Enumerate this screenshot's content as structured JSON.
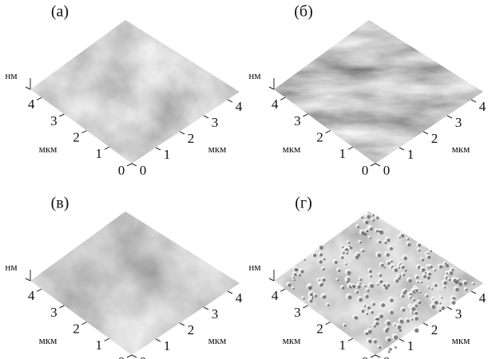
{
  "panels": [
    {
      "label": "(а)",
      "z_unit": "нм",
      "left_axis": {
        "ticks": [
          0,
          1,
          2,
          3,
          4
        ],
        "unit": "мкм"
      },
      "right_axis": {
        "ticks": [
          0,
          1,
          2,
          3,
          4
        ],
        "unit": "мкм"
      }
    },
    {
      "label": "(б)",
      "z_unit": "нм",
      "left_axis": {
        "ticks": [
          0,
          1,
          2,
          3,
          4
        ],
        "unit": "мкм"
      },
      "right_axis": {
        "ticks": [
          0,
          1,
          2,
          3,
          4
        ],
        "unit": "мкм"
      }
    },
    {
      "label": "(в)",
      "z_unit": "нм",
      "left_axis": {
        "ticks": [
          0,
          1,
          2,
          3,
          4
        ],
        "unit": "мкм"
      },
      "right_axis": {
        "ticks": [
          0,
          1,
          2,
          3,
          4
        ],
        "unit": "мкм"
      }
    },
    {
      "label": "(г)",
      "z_unit": "нм",
      "left_axis": {
        "ticks": [
          0,
          1,
          2,
          3,
          4
        ],
        "unit": "мкм"
      },
      "right_axis": {
        "ticks": [
          0,
          1,
          2,
          3,
          4
        ],
        "unit": "мкм"
      }
    }
  ]
}
